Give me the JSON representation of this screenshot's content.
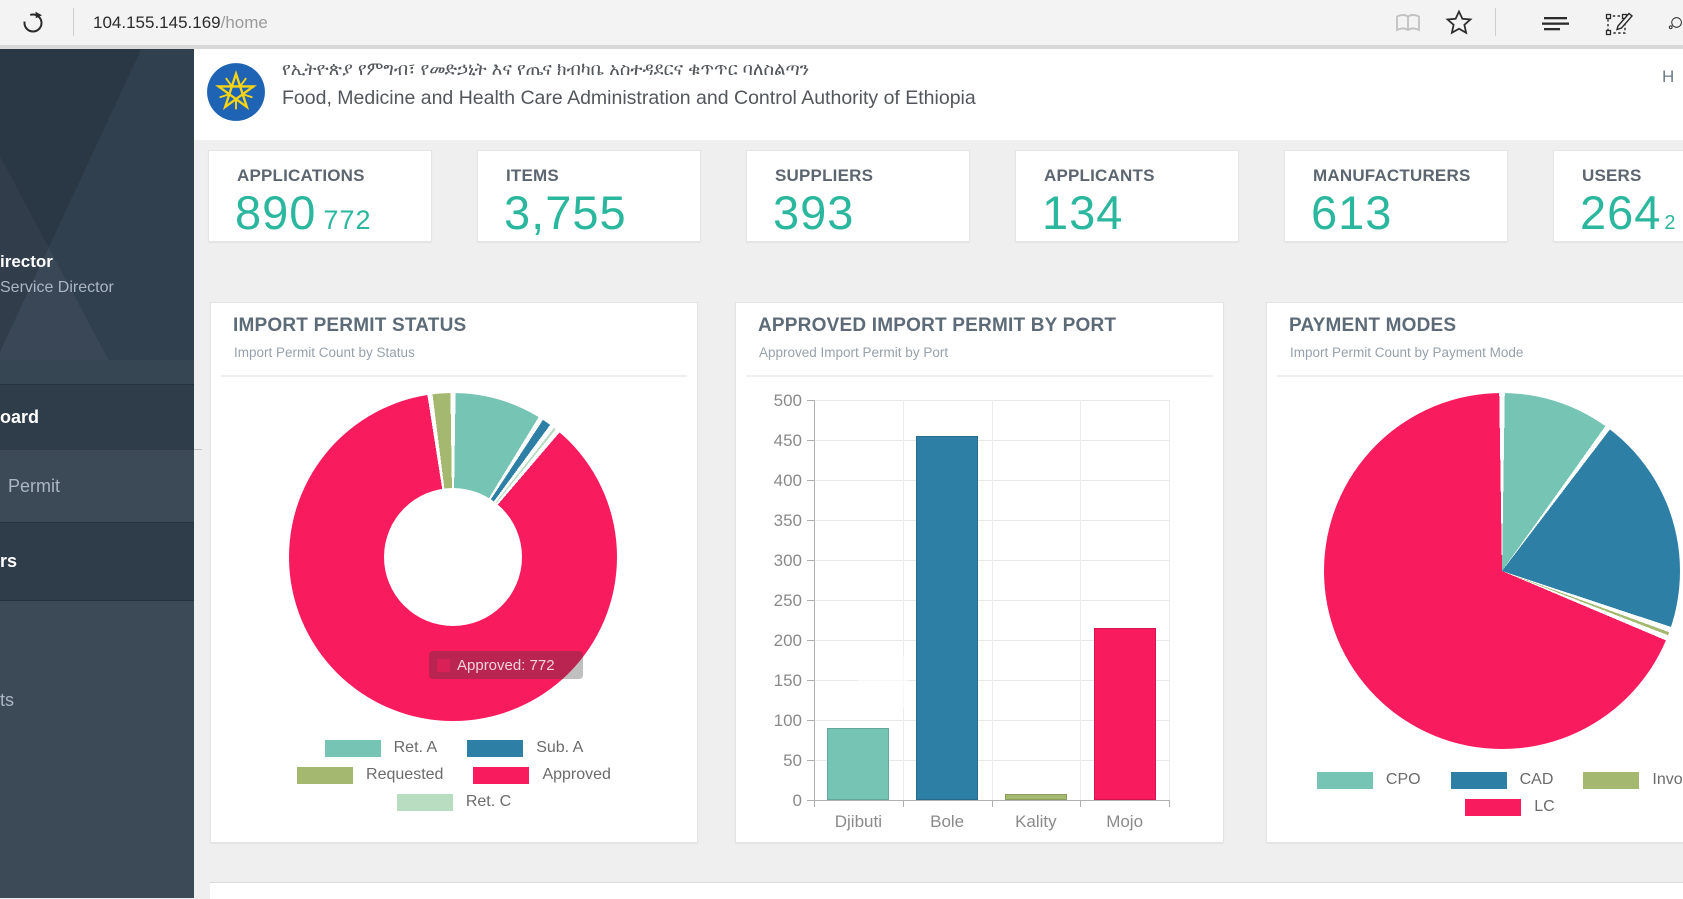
{
  "browser": {
    "url_host": "104.155.145.169",
    "url_path": "/home",
    "icons": [
      "refresh-icon",
      "reading-view-icon",
      "favorites-star-icon",
      "hub-menu-icon",
      "web-note-icon",
      "share-icon"
    ]
  },
  "header": {
    "title_amharic": "የኢትዮጵያ የምግብ፣ የመድኃኒት እና የጤና ክብካቤ አስተዳደርና ቁጥጥር ባለስልጣን",
    "title_english": "Food, Medicine and Health Care Administration and Control Authority of Ethiopia",
    "nav_partial": "H"
  },
  "sidebar": {
    "profile_name_fragment": "irector",
    "profile_role_fragment": "Service Director",
    "items": [
      {
        "label": "oard",
        "active": true
      },
      {
        "label": "Permit",
        "active": false
      },
      {
        "label": "rs",
        "active": true
      },
      {
        "label": "ts",
        "active": false
      }
    ]
  },
  "stats": [
    {
      "label": "APPLICATIONS",
      "value": "890",
      "sub": "772"
    },
    {
      "label": "ITEMS",
      "value": "3,755",
      "sub": ""
    },
    {
      "label": "SUPPLIERS",
      "value": "393",
      "sub": ""
    },
    {
      "label": "APPLICANTS",
      "value": "134",
      "sub": ""
    },
    {
      "label": "MANUFACTURERS",
      "value": "613",
      "sub": ""
    },
    {
      "label": "USERS",
      "value": "264",
      "sub": "2"
    }
  ],
  "accent_color": "#2ab79e",
  "chart_data": [
    {
      "type": "pie",
      "variant": "donut",
      "title": "IMPORT PERMIT STATUS",
      "subtitle": "Import Permit Count by Status",
      "labels": [
        "Ret. A",
        "Sub. A",
        "Ret. C",
        "Approved",
        "Requested"
      ],
      "values": [
        80,
        12,
        6,
        772,
        20
      ],
      "colors": [
        "#76C4B4",
        "#2E7FA6",
        "#B9DDC1",
        "#F81B5D",
        "#A4B96F"
      ],
      "legend_rows": [
        [
          "Ret. A",
          "Sub. A"
        ],
        [
          "Requested",
          "Approved"
        ],
        [
          "Ret. C"
        ]
      ],
      "legend_position": "bottom",
      "tooltip": {
        "label": "Approved",
        "value": 772,
        "text": "Approved: 772"
      }
    },
    {
      "type": "bar",
      "title": "APPROVED IMPORT PERMIT BY PORT",
      "subtitle": "Approved Import Permit by Port",
      "categories": [
        "Djibuti",
        "Bole",
        "Kality",
        "Mojo"
      ],
      "values": [
        90,
        455,
        8,
        215
      ],
      "colors": [
        "#76C4B4",
        "#2E7FA6",
        "#A4B96F",
        "#F81B5D"
      ],
      "ylim": [
        0,
        500
      ],
      "ystep": 50,
      "grid": true
    },
    {
      "type": "pie",
      "variant": "pie",
      "title": "PAYMENT MODES",
      "subtitle": "Import Permit Count by Payment Mode",
      "labels": [
        "CPO",
        "CAD",
        "Invoice",
        "LC"
      ],
      "values": [
        90,
        180,
        7,
        613
      ],
      "colors": [
        "#76C4B4",
        "#2E7FA6",
        "#A4B96F",
        "#F81B5D"
      ],
      "legend_rows": [
        [
          "CPO",
          "CAD",
          "Invoice"
        ],
        [
          "LC"
        ]
      ],
      "legend_position": "bottom"
    }
  ]
}
